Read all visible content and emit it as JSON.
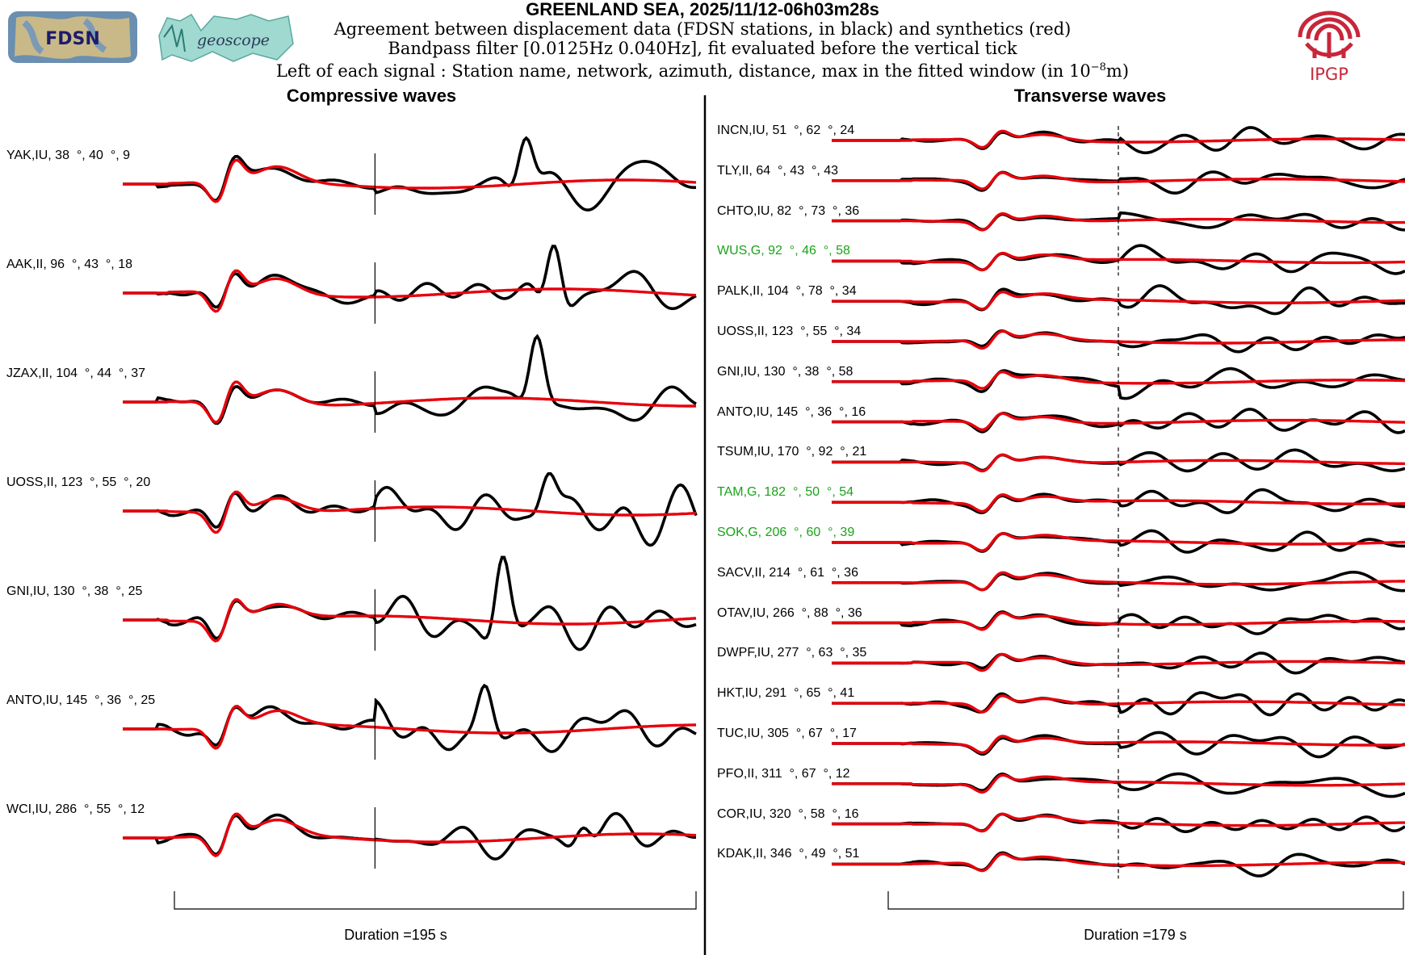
{
  "header": {
    "title": "GREENLAND SEA, 2025/11/12-06h03m28s",
    "line1": "Agreement between displacement data (FDSN stations, in black) and synthetics (red)",
    "line2": "Bandpass filter [0.0125Hz 0.040Hz], fit evaluated before the vertical tick",
    "line3_prefix": "Left of each signal : Station name, network, azimuth, distance, max in the fitted window (in 10",
    "line3_exp": "−8",
    "line3_suffix": "m)"
  },
  "logos": {
    "fdsn": "FDSN",
    "geoscope": "geoscope",
    "ipgp": "IPGP"
  },
  "colors": {
    "data": "#000000",
    "synthetic": "#e8000b",
    "geoscope_label": "#19a319"
  },
  "chart_data": [
    {
      "type": "line",
      "title": "Compressive waves",
      "duration_label": "Duration =195 s",
      "duration_s": 195,
      "series": [
        {
          "name": "data",
          "color": "#000000"
        },
        {
          "name": "synthetics",
          "color": "#e8000b"
        }
      ],
      "stations": [
        {
          "station": "YAK",
          "network": "IU",
          "azimuth": 38,
          "distance": 40,
          "max": 9,
          "label": "YAK,IU, 38  °, 40  °, 9",
          "geoscope": false
        },
        {
          "station": "AAK",
          "network": "II",
          "azimuth": 96,
          "distance": 43,
          "max": 18,
          "label": "AAK,II, 96  °, 43  °, 18",
          "geoscope": false
        },
        {
          "station": "JZAX",
          "network": "II",
          "azimuth": 104,
          "distance": 44,
          "max": 37,
          "label": "JZAX,II, 104  °, 44  °, 37",
          "geoscope": false
        },
        {
          "station": "UOSS",
          "network": "II",
          "azimuth": 123,
          "distance": 55,
          "max": 20,
          "label": "UOSS,II, 123  °, 55  °, 20",
          "geoscope": false
        },
        {
          "station": "GNI",
          "network": "IU",
          "azimuth": 130,
          "distance": 38,
          "max": 25,
          "label": "GNI,IU, 130  °, 38  °, 25",
          "geoscope": false
        },
        {
          "station": "ANTO",
          "network": "IU",
          "azimuth": 145,
          "distance": 36,
          "max": 25,
          "label": "ANTO,IU, 145  °, 36  °, 25",
          "geoscope": false
        },
        {
          "station": "WCI",
          "network": "IU",
          "azimuth": 286,
          "distance": 55,
          "max": 12,
          "label": "WCI,IU, 286  °, 55  °, 12",
          "geoscope": false
        }
      ]
    },
    {
      "type": "line",
      "title": "Transverse waves",
      "duration_label": "Duration =179 s",
      "duration_s": 179,
      "series": [
        {
          "name": "data",
          "color": "#000000"
        },
        {
          "name": "synthetics",
          "color": "#e8000b"
        }
      ],
      "stations": [
        {
          "station": "INCN",
          "network": "IU",
          "azimuth": 51,
          "distance": 62,
          "max": 24,
          "label": "INCN,IU, 51  °, 62  °, 24",
          "geoscope": false
        },
        {
          "station": "TLY",
          "network": "II",
          "azimuth": 64,
          "distance": 43,
          "max": 43,
          "label": "TLY,II, 64  °, 43  °, 43",
          "geoscope": false
        },
        {
          "station": "CHTO",
          "network": "IU",
          "azimuth": 82,
          "distance": 73,
          "max": 36,
          "label": "CHTO,IU, 82  °, 73  °, 36",
          "geoscope": false
        },
        {
          "station": "WUS",
          "network": "G",
          "azimuth": 92,
          "distance": 46,
          "max": 58,
          "label": "WUS,G, 92  °, 46  °, 58",
          "geoscope": true
        },
        {
          "station": "PALK",
          "network": "II",
          "azimuth": 104,
          "distance": 78,
          "max": 34,
          "label": "PALK,II, 104  °, 78  °, 34",
          "geoscope": false
        },
        {
          "station": "UOSS",
          "network": "II",
          "azimuth": 123,
          "distance": 55,
          "max": 34,
          "label": "UOSS,II, 123  °, 55  °, 34",
          "geoscope": false
        },
        {
          "station": "GNI",
          "network": "IU",
          "azimuth": 130,
          "distance": 38,
          "max": 58,
          "label": "GNI,IU, 130  °, 38  °, 58",
          "geoscope": false
        },
        {
          "station": "ANTO",
          "network": "IU",
          "azimuth": 145,
          "distance": 36,
          "max": 16,
          "label": "ANTO,IU, 145  °, 36  °, 16",
          "geoscope": false
        },
        {
          "station": "TSUM",
          "network": "IU",
          "azimuth": 170,
          "distance": 92,
          "max": 21,
          "label": "TSUM,IU, 170  °, 92  °, 21",
          "geoscope": false
        },
        {
          "station": "TAM",
          "network": "G",
          "azimuth": 182,
          "distance": 50,
          "max": 54,
          "label": "TAM,G, 182  °, 50  °, 54",
          "geoscope": true
        },
        {
          "station": "SOK",
          "network": "G",
          "azimuth": 206,
          "distance": 60,
          "max": 39,
          "label": "SOK,G, 206  °, 60  °, 39",
          "geoscope": true
        },
        {
          "station": "SACV",
          "network": "II",
          "azimuth": 214,
          "distance": 61,
          "max": 36,
          "label": "SACV,II, 214  °, 61  °, 36",
          "geoscope": false
        },
        {
          "station": "OTAV",
          "network": "IU",
          "azimuth": 266,
          "distance": 88,
          "max": 36,
          "label": "OTAV,IU, 266  °, 88  °, 36",
          "geoscope": false
        },
        {
          "station": "DWPF",
          "network": "IU",
          "azimuth": 277,
          "distance": 63,
          "max": 35,
          "label": "DWPF,IU, 277  °, 63  °, 35",
          "geoscope": false
        },
        {
          "station": "HKT",
          "network": "IU",
          "azimuth": 291,
          "distance": 65,
          "max": 41,
          "label": "HKT,IU, 291  °, 65  °, 41",
          "geoscope": false
        },
        {
          "station": "TUC",
          "network": "IU",
          "azimuth": 305,
          "distance": 67,
          "max": 17,
          "label": "TUC,IU, 305  °, 67  °, 17",
          "geoscope": false
        },
        {
          "station": "PFO",
          "network": "II",
          "azimuth": 311,
          "distance": 67,
          "max": 12,
          "label": "PFO,II, 311  °, 67  °, 12",
          "geoscope": false
        },
        {
          "station": "COR",
          "network": "IU",
          "azimuth": 320,
          "distance": 58,
          "max": 16,
          "label": "COR,IU, 320  °, 58  °, 16",
          "geoscope": false
        },
        {
          "station": "KDAK",
          "network": "II",
          "azimuth": 346,
          "distance": 49,
          "max": 51,
          "label": "KDAK,II, 346  °, 49  °, 51",
          "geoscope": false
        }
      ]
    }
  ]
}
